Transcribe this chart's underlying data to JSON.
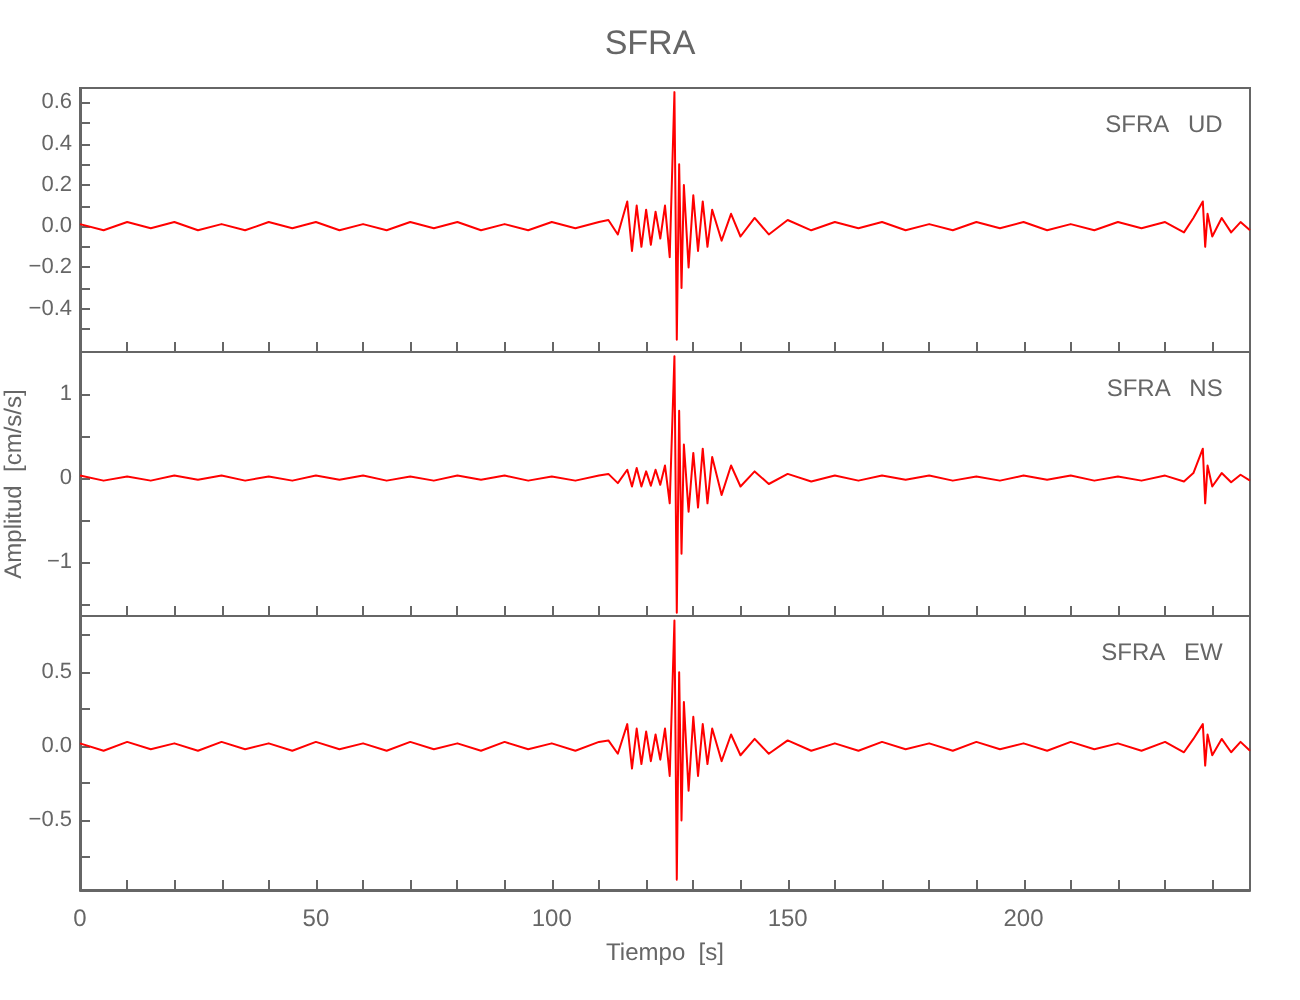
{
  "chart_data": [
    {
      "type": "line",
      "title": "SFRA",
      "annotations": [
        "SFRA   UD"
      ],
      "tick_labels": "y",
      "x": [
        0,
        5,
        10,
        15,
        20,
        25,
        30,
        35,
        40,
        45,
        50,
        55,
        60,
        65,
        70,
        75,
        80,
        85,
        90,
        95,
        100,
        105,
        110,
        112,
        114,
        116,
        117,
        118,
        119,
        120,
        121,
        122,
        123,
        124,
        125,
        126,
        126.5,
        127,
        127.5,
        128,
        129,
        130,
        131,
        132,
        133,
        134,
        136,
        138,
        140,
        143,
        146,
        150,
        155,
        160,
        165,
        170,
        175,
        180,
        185,
        190,
        195,
        200,
        205,
        210,
        215,
        220,
        225,
        230,
        234,
        236,
        238,
        238.5,
        239,
        240,
        242,
        244,
        246,
        248
      ],
      "series": [
        {
          "color": "#ff0000",
          "values": [
            0.01,
            -0.02,
            0.02,
            -0.01,
            0.02,
            -0.02,
            0.01,
            -0.02,
            0.02,
            -0.01,
            0.02,
            -0.02,
            0.01,
            -0.02,
            0.02,
            -0.01,
            0.02,
            -0.02,
            0.01,
            -0.02,
            0.02,
            -0.01,
            0.02,
            0.03,
            -0.04,
            0.12,
            -0.12,
            0.1,
            -0.1,
            0.08,
            -0.09,
            0.07,
            -0.06,
            0.1,
            -0.15,
            0.65,
            -0.55,
            0.3,
            -0.3,
            0.2,
            -0.2,
            0.15,
            -0.12,
            0.12,
            -0.1,
            0.08,
            -0.07,
            0.06,
            -0.05,
            0.04,
            -0.04,
            0.03,
            -0.02,
            0.02,
            -0.01,
            0.02,
            -0.02,
            0.01,
            -0.02,
            0.02,
            -0.01,
            0.02,
            -0.02,
            0.01,
            -0.02,
            0.02,
            -0.01,
            0.02,
            -0.03,
            0.04,
            0.12,
            -0.1,
            0.06,
            -0.05,
            0.04,
            -0.03,
            0.02,
            -0.02
          ]
        }
      ],
      "xlim": [
        0,
        248
      ],
      "ylim": [
        -0.61,
        0.67
      ],
      "xticks": [
        0,
        {
          "value": 10,
          "label": null
        },
        {
          "value": 20,
          "label": null
        },
        {
          "value": 30,
          "label": null
        },
        {
          "value": 40,
          "label": null
        },
        50,
        {
          "value": 60,
          "label": null
        },
        {
          "value": 70,
          "label": null
        },
        {
          "value": 80,
          "label": null
        },
        {
          "value": 90,
          "label": null
        },
        100,
        {
          "value": 110,
          "label": null
        },
        {
          "value": 120,
          "label": null
        },
        {
          "value": 130,
          "label": null
        },
        {
          "value": 140,
          "label": null
        },
        150,
        {
          "value": 160,
          "label": null
        },
        {
          "value": 170,
          "label": null
        },
        {
          "value": 180,
          "label": null
        },
        {
          "value": 190,
          "label": null
        },
        200,
        {
          "value": 210,
          "label": null
        },
        {
          "value": 220,
          "label": null
        },
        {
          "value": 230,
          "label": null
        },
        {
          "value": 240,
          "label": null
        }
      ],
      "yticks": [
        {
          "value": -0.5,
          "label": null
        },
        {
          "value": -0.4,
          "label": "−0.4"
        },
        {
          "value": -0.3,
          "label": null
        },
        {
          "value": -0.2,
          "label": "−0.2"
        },
        {
          "value": -0.1,
          "label": null
        },
        {
          "value": 0,
          "label": "0.0"
        },
        {
          "value": 0.1,
          "label": null
        },
        0.2,
        {
          "value": 0.3,
          "label": null
        },
        0.4,
        {
          "value": 0.5,
          "label": null
        },
        0.6
      ]
    },
    {
      "type": "line",
      "ylabel": "Amplitud  [cm/s/s]",
      "annotations": [
        "SFRA   NS"
      ],
      "tick_labels": "y",
      "x": [
        0,
        5,
        10,
        15,
        20,
        25,
        30,
        35,
        40,
        45,
        50,
        55,
        60,
        65,
        70,
        75,
        80,
        85,
        90,
        95,
        100,
        105,
        110,
        112,
        114,
        116,
        117,
        118,
        119,
        120,
        121,
        122,
        123,
        124,
        125,
        126,
        126.5,
        127,
        127.5,
        128,
        129,
        130,
        131,
        132,
        133,
        134,
        136,
        138,
        140,
        143,
        146,
        150,
        155,
        160,
        165,
        170,
        175,
        180,
        185,
        190,
        195,
        200,
        205,
        210,
        215,
        220,
        225,
        230,
        234,
        236,
        238,
        238.5,
        239,
        240,
        242,
        244,
        246,
        248
      ],
      "series": [
        {
          "color": "#ff0000",
          "values": [
            0.03,
            -0.03,
            0.02,
            -0.03,
            0.03,
            -0.02,
            0.03,
            -0.03,
            0.02,
            -0.03,
            0.03,
            -0.02,
            0.03,
            -0.03,
            0.02,
            -0.03,
            0.03,
            -0.02,
            0.03,
            -0.03,
            0.02,
            -0.03,
            0.03,
            0.05,
            -0.06,
            0.1,
            -0.1,
            0.12,
            -0.1,
            0.08,
            -0.09,
            0.1,
            -0.08,
            0.15,
            -0.3,
            1.45,
            -1.6,
            0.8,
            -0.9,
            0.4,
            -0.4,
            0.3,
            -0.35,
            0.35,
            -0.3,
            0.25,
            -0.2,
            0.15,
            -0.1,
            0.08,
            -0.07,
            0.05,
            -0.04,
            0.03,
            -0.03,
            0.03,
            -0.02,
            0.03,
            -0.03,
            0.02,
            -0.03,
            0.03,
            -0.02,
            0.03,
            -0.03,
            0.02,
            -0.03,
            0.03,
            -0.04,
            0.06,
            0.35,
            -0.3,
            0.15,
            -0.1,
            0.06,
            -0.05,
            0.04,
            -0.03
          ]
        }
      ],
      "xlim": [
        0,
        248
      ],
      "ylim": [
        -1.64,
        1.5
      ],
      "xticks": [
        0,
        {
          "value": 10,
          "label": null
        },
        {
          "value": 20,
          "label": null
        },
        {
          "value": 30,
          "label": null
        },
        {
          "value": 40,
          "label": null
        },
        50,
        {
          "value": 60,
          "label": null
        },
        {
          "value": 70,
          "label": null
        },
        {
          "value": 80,
          "label": null
        },
        {
          "value": 90,
          "label": null
        },
        100,
        {
          "value": 110,
          "label": null
        },
        {
          "value": 120,
          "label": null
        },
        {
          "value": 130,
          "label": null
        },
        {
          "value": 140,
          "label": null
        },
        150,
        {
          "value": 160,
          "label": null
        },
        {
          "value": 170,
          "label": null
        },
        {
          "value": 180,
          "label": null
        },
        {
          "value": 190,
          "label": null
        },
        200,
        {
          "value": 210,
          "label": null
        },
        {
          "value": 220,
          "label": null
        },
        {
          "value": 230,
          "label": null
        },
        {
          "value": 240,
          "label": null
        }
      ],
      "yticks": [
        {
          "value": -1.5,
          "label": null
        },
        {
          "value": -1,
          "label": "−1"
        },
        {
          "value": -0.5,
          "label": null
        },
        0,
        {
          "value": 0.5,
          "label": null
        },
        1
      ]
    },
    {
      "type": "line",
      "xlabel": "Tiempo  [s]",
      "annotations": [
        "SFRA   EW"
      ],
      "x": [
        0,
        5,
        10,
        15,
        20,
        25,
        30,
        35,
        40,
        45,
        50,
        55,
        60,
        65,
        70,
        75,
        80,
        85,
        90,
        95,
        100,
        105,
        110,
        112,
        114,
        116,
        117,
        118,
        119,
        120,
        121,
        122,
        123,
        124,
        125,
        126,
        126.5,
        127,
        127.5,
        128,
        129,
        130,
        131,
        132,
        133,
        134,
        136,
        138,
        140,
        143,
        146,
        150,
        155,
        160,
        165,
        170,
        175,
        180,
        185,
        190,
        195,
        200,
        205,
        210,
        215,
        220,
        225,
        230,
        234,
        236,
        238,
        238.5,
        239,
        240,
        242,
        244,
        246,
        248
      ],
      "series": [
        {
          "color": "#ff0000",
          "values": [
            0.02,
            -0.03,
            0.03,
            -0.02,
            0.02,
            -0.03,
            0.03,
            -0.02,
            0.02,
            -0.03,
            0.03,
            -0.02,
            0.02,
            -0.03,
            0.03,
            -0.02,
            0.02,
            -0.03,
            0.03,
            -0.02,
            0.02,
            -0.03,
            0.03,
            0.04,
            -0.05,
            0.15,
            -0.15,
            0.12,
            -0.12,
            0.1,
            -0.1,
            0.08,
            -0.09,
            0.12,
            -0.2,
            0.85,
            -0.9,
            0.5,
            -0.5,
            0.3,
            -0.3,
            0.2,
            -0.2,
            0.15,
            -0.12,
            0.12,
            -0.1,
            0.08,
            -0.06,
            0.05,
            -0.05,
            0.04,
            -0.03,
            0.02,
            -0.03,
            0.03,
            -0.02,
            0.02,
            -0.03,
            0.03,
            -0.02,
            0.02,
            -0.03,
            0.03,
            -0.02,
            0.02,
            -0.03,
            0.03,
            -0.04,
            0.05,
            0.15,
            -0.13,
            0.08,
            -0.06,
            0.05,
            -0.04,
            0.03,
            -0.03
          ]
        }
      ],
      "xlim": [
        0,
        248
      ],
      "ylim": [
        -0.97,
        0.88
      ],
      "xticks": [
        0,
        {
          "value": 10,
          "label": null
        },
        {
          "value": 20,
          "label": null
        },
        {
          "value": 30,
          "label": null
        },
        {
          "value": 40,
          "label": null
        },
        50,
        {
          "value": 60,
          "label": null
        },
        {
          "value": 70,
          "label": null
        },
        {
          "value": 80,
          "label": null
        },
        {
          "value": 90,
          "label": null
        },
        100,
        {
          "value": 110,
          "label": null
        },
        {
          "value": 120,
          "label": null
        },
        {
          "value": 130,
          "label": null
        },
        {
          "value": 140,
          "label": null
        },
        150,
        {
          "value": 160,
          "label": null
        },
        {
          "value": 170,
          "label": null
        },
        {
          "value": 180,
          "label": null
        },
        {
          "value": 190,
          "label": null
        },
        200,
        {
          "value": 210,
          "label": null
        },
        {
          "value": 220,
          "label": null
        },
        {
          "value": 230,
          "label": null
        },
        {
          "value": 240,
          "label": null
        }
      ],
      "yticks": [
        {
          "value": -0.75,
          "label": null
        },
        {
          "value": -0.5,
          "label": "−0.5"
        },
        {
          "value": -0.25,
          "label": null
        },
        {
          "value": 0,
          "label": "0.0"
        },
        {
          "value": 0.25,
          "label": null
        },
        0.5,
        {
          "value": 0.75,
          "label": null
        }
      ]
    }
  ]
}
